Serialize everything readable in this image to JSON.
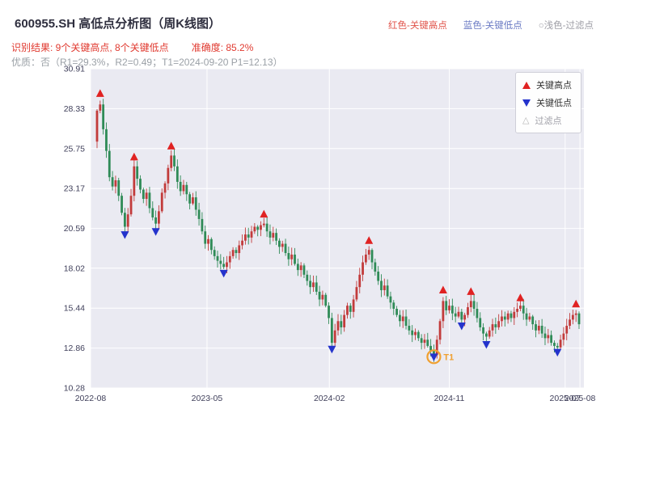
{
  "header": {
    "title": "600955.SH 高低点分析图（周K线图）",
    "legend_top": [
      {
        "label": "红色-关键高点",
        "color": "#e0534a"
      },
      {
        "label": "蓝色-关键低点",
        "color": "#6b7bc4"
      },
      {
        "label": "○浅色-过滤点",
        "color": "#9e9ea6"
      }
    ],
    "recognition": "识别结果: 9个关键高点, 8个关键低点",
    "accuracy": "准确度: 85.2%",
    "quality_line": "优质：否（R1=29.3%，R2=0.49；T1=2024-09-20 P1=12.13）"
  },
  "chart_data": {
    "type": "candlestick",
    "title": "600955.SH 周K线 高低点分析",
    "xlabel": "",
    "ylabel": "",
    "grid": true,
    "ylim": [
      10.28,
      30.91
    ],
    "y_ticks": [
      10.28,
      12.86,
      15.44,
      18.02,
      20.59,
      23.17,
      25.75,
      28.33,
      30.91
    ],
    "x_ticks": [
      {
        "label": "2022-08",
        "f": 0.0
      },
      {
        "label": "2023-05",
        "f": 0.236
      },
      {
        "label": "2024-02",
        "f": 0.484
      },
      {
        "label": "2024-11",
        "f": 0.727
      },
      {
        "label": "2025-07",
        "f": 0.962
      },
      {
        "label": "2025-08",
        "f": 0.992
      }
    ],
    "closes": [
      28.2,
      28.6,
      27.0,
      25.6,
      23.9,
      23.3,
      23.7,
      22.7,
      21.6,
      20.7,
      21.5,
      22.7,
      24.6,
      23.8,
      23.1,
      22.5,
      22.9,
      21.9,
      21.3,
      20.9,
      21.7,
      22.9,
      23.5,
      24.5,
      25.3,
      24.6,
      23.6,
      23.0,
      23.4,
      22.8,
      22.2,
      22.6,
      21.8,
      21.2,
      20.4,
      19.6,
      19.9,
      19.2,
      18.8,
      18.5,
      18.3,
      18.1,
      18.4,
      18.8,
      19.2,
      19.0,
      19.5,
      19.8,
      20.2,
      20.0,
      20.4,
      20.7,
      20.5,
      20.8,
      20.9,
      20.4,
      20.0,
      20.3,
      19.8,
      19.4,
      19.6,
      19.0,
      18.6,
      18.9,
      18.3,
      17.9,
      18.2,
      17.6,
      17.2,
      16.8,
      17.1,
      16.5,
      16.0,
      16.3,
      15.6,
      14.8,
      13.2,
      14.0,
      14.6,
      14.2,
      15.0,
      15.6,
      15.2,
      16.0,
      16.8,
      17.6,
      18.4,
      18.9,
      19.2,
      18.4,
      17.8,
      17.2,
      16.6,
      16.9,
      16.2,
      15.8,
      15.4,
      15.0,
      14.6,
      14.9,
      14.3,
      14.0,
      13.7,
      13.9,
      13.5,
      13.2,
      13.4,
      13.0,
      12.7,
      12.4,
      13.4,
      14.6,
      15.9,
      15.3,
      15.6,
      15.1,
      14.9,
      15.2,
      14.7,
      15.0,
      15.5,
      15.9,
      15.4,
      14.8,
      14.2,
      13.8,
      13.6,
      14.0,
      14.4,
      14.2,
      14.6,
      14.9,
      14.7,
      15.1,
      14.8,
      15.2,
      15.4,
      15.6,
      15.1,
      14.7,
      14.9,
      14.4,
      14.0,
      14.3,
      13.8,
      13.5,
      13.7,
      13.2,
      13.0,
      12.9,
      13.4,
      13.8,
      14.3,
      14.7,
      15.0,
      15.1,
      14.4
    ],
    "key_highs": [
      {
        "i": 1,
        "p": 29.3
      },
      {
        "i": 12,
        "p": 25.2
      },
      {
        "i": 24,
        "p": 25.9
      },
      {
        "i": 54,
        "p": 21.5
      },
      {
        "i": 88,
        "p": 19.8
      },
      {
        "i": 112,
        "p": 16.6
      },
      {
        "i": 121,
        "p": 16.5
      },
      {
        "i": 137,
        "p": 16.1
      },
      {
        "i": 155,
        "p": 15.7
      }
    ],
    "key_lows": [
      {
        "i": 9,
        "p": 20.2
      },
      {
        "i": 19,
        "p": 20.4
      },
      {
        "i": 41,
        "p": 17.7
      },
      {
        "i": 76,
        "p": 12.8
      },
      {
        "i": 109,
        "p": 12.3
      },
      {
        "i": 118,
        "p": 14.3
      },
      {
        "i": 126,
        "p": 13.1
      },
      {
        "i": 149,
        "p": 12.6
      }
    ],
    "filtered_points": [],
    "t1": {
      "i": 109,
      "p": 12.3,
      "label": "T1",
      "date": "2024-09-20",
      "price": 12.13
    },
    "colors": {
      "up": "#c23b3b",
      "down": "#2f8b57",
      "high_marker": "#e02222",
      "low_marker": "#2433cc",
      "bg": "#eaeaf2",
      "grid": "#ffffff",
      "t1": "#f0a030"
    },
    "legend_box": [
      {
        "label": "关键高点",
        "marker": "triangle-up",
        "color": "#e02222"
      },
      {
        "label": "关键低点",
        "marker": "triangle-down",
        "color": "#2433cc"
      },
      {
        "label": "过滤点",
        "marker": "triangle-up-hollow",
        "color": "#b5b5b5"
      }
    ]
  }
}
